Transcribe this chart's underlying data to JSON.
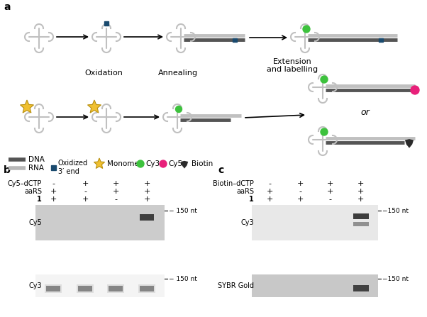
{
  "bg_color": "#ffffff",
  "hairpin_color": "#c0c0c0",
  "dna_color": "#555555",
  "rna_color": "#c0c0c0",
  "oxidized_color": "#1a4a6e",
  "cy3_color": "#3dc23d",
  "cy5_color": "#e8207a",
  "biotin_color": "#2a2a2a",
  "monomer_color": "#f0c030",
  "panel_b": {
    "row1_label": "Cy5–dCTP",
    "row2_label": "aaRS",
    "row3_label": "1",
    "col_signs": [
      [
        "-",
        "+",
        "+",
        "+"
      ],
      [
        "+",
        "-",
        "+",
        "+"
      ],
      [
        "+",
        "+",
        "-",
        "+"
      ]
    ],
    "gel1_label": "Cy5",
    "gel1_bg": "#cccccc",
    "gel2_label": "Cy3",
    "gel2_bg": "#f0f0f0"
  },
  "panel_c": {
    "row1_label": "Biotin–dCTP",
    "row2_label": "aaRS",
    "row3_label": "1",
    "col_signs": [
      [
        "-",
        "+",
        "+",
        "+"
      ],
      [
        "+",
        "-",
        "+",
        "+"
      ],
      [
        "+",
        "+",
        "-",
        "+"
      ]
    ],
    "gel1_label": "Cy3",
    "gel1_bg": "#e8e8e8",
    "gel2_label": "SYBR Gold",
    "gel2_bg": "#c8c8c8"
  }
}
